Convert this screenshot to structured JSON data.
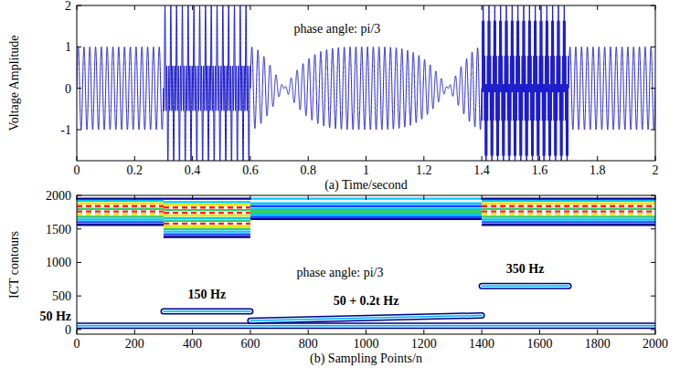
{
  "chart_data": [
    {
      "type": "line",
      "xlabel": "(a) Time/second",
      "ylabel": "Voltage Amplitude",
      "xlim": [
        0,
        2
      ],
      "ylim": [
        -1.75,
        2
      ],
      "xticks": [
        0,
        0.2,
        0.4,
        0.6,
        0.8,
        1,
        1.2,
        1.4,
        1.6,
        1.8,
        2
      ],
      "yticks": [
        -1,
        0,
        1,
        2
      ],
      "color": "#1a1acc",
      "segments": [
        {
          "x": [
            0,
            0.3
          ],
          "components": [
            {
              "frequency": 50,
              "amplitude": 1,
              "phase": 0
            }
          ]
        },
        {
          "x": [
            0.3,
            0.6
          ],
          "components": [
            {
              "frequency": 50,
              "amplitude": 1,
              "phase": 0
            },
            {
              "frequency": 150,
              "amplitude": 1,
              "phase": 180
            }
          ]
        },
        {
          "x": [
            0.6,
            1.4
          ],
          "components": [
            {
              "frequency": 50,
              "amplitude": 0.5,
              "phase": 0
            },
            {
              "frequency": [
                45,
                55
              ],
              "amplitude": 0.5,
              "phase": 0
            }
          ]
        },
        {
          "x": [
            1.4,
            1.7
          ],
          "components": [
            {
              "frequency": 50,
              "amplitude": 1,
              "phase": 0
            },
            {
              "frequency": 350,
              "amplitude": 1,
              "phase": 180
            }
          ]
        },
        {
          "x": [
            1.7,
            2
          ],
          "components": [
            {
              "frequency": 50,
              "amplitude": 1,
              "phase": 0
            }
          ]
        }
      ],
      "annotations": [
        {
          "text": "phase angle: pi/3",
          "x": 0.9,
          "y": 1.45
        }
      ]
    },
    {
      "type": "contour",
      "xlabel": "(b) Sampling Points/n",
      "ylabel": "ICT contours",
      "xlim": [
        0,
        2000
      ],
      "ylim": [
        -70,
        2000
      ],
      "xticks": [
        0,
        200,
        400,
        600,
        800,
        1000,
        1200,
        1400,
        1600,
        1800,
        2000
      ],
      "yticks": [
        0,
        500,
        1000,
        1500,
        2000
      ],
      "bands": [
        {
          "x": [
            0,
            300
          ],
          "lines": [
            {
              "y": 1560,
              "color": "#00008b"
            },
            {
              "y": 1600,
              "color": "#1e3cff"
            },
            {
              "y": 1640,
              "color": "#00c8ff"
            },
            {
              "y": 1680,
              "color": "#33cc66"
            },
            {
              "y": 1720,
              "color": "#e6e600",
              "line_style": "dashed"
            },
            {
              "y": 1760,
              "color": "#ff2020",
              "line_style": "dashed"
            },
            {
              "y": 1800,
              "color": "#33cc66"
            },
            {
              "y": 1840,
              "color": "#ff2020",
              "line_style": "dashed"
            },
            {
              "y": 1880,
              "color": "#e6e600"
            },
            {
              "y": 1920,
              "color": "#00c8ff"
            },
            {
              "y": 1950,
              "color": "#00008b"
            }
          ]
        },
        {
          "x": [
            300,
            600
          ],
          "lines": [
            {
              "y": 1380,
              "color": "#00008b"
            },
            {
              "y": 1420,
              "color": "#1e3cff"
            },
            {
              "y": 1460,
              "color": "#00c8ff"
            },
            {
              "y": 1500,
              "color": "#33cc66"
            },
            {
              "y": 1540,
              "color": "#e6e600"
            },
            {
              "y": 1580,
              "color": "#ff2020",
              "line_style": "dashed"
            },
            {
              "y": 1620,
              "color": "#33cc66"
            },
            {
              "y": 1660,
              "color": "#00c8ff"
            },
            {
              "y": 1700,
              "color": "#e6e600"
            },
            {
              "y": 1740,
              "color": "#ff2020",
              "line_style": "dashed"
            },
            {
              "y": 1780,
              "color": "#33cc66"
            },
            {
              "y": 1820,
              "color": "#ff2020",
              "line_style": "dashed"
            },
            {
              "y": 1860,
              "color": "#e6e600"
            },
            {
              "y": 1900,
              "color": "#00c8ff"
            },
            {
              "y": 1950,
              "color": "#00008b"
            }
          ]
        },
        {
          "x": [
            600,
            1400
          ],
          "lines": [
            {
              "y": 1650,
              "color": "#00008b"
            },
            {
              "y": 1680,
              "color": "#1e3cff"
            },
            {
              "y": 1710,
              "color": "#00c8ff"
            },
            {
              "y": 1740,
              "color": "#33cc66"
            },
            {
              "y": 1770,
              "color": "#33cc66"
            },
            {
              "y": 1800,
              "color": "#00c8ff"
            },
            {
              "y": 1840,
              "color": "#1e3cff"
            },
            {
              "y": 1880,
              "color": "#00c8ff"
            },
            {
              "y": 1950,
              "color": "#00c8ff"
            }
          ]
        },
        {
          "x": [
            1400,
            2000
          ],
          "lines": [
            {
              "y": 1560,
              "color": "#00008b"
            },
            {
              "y": 1600,
              "color": "#1e3cff"
            },
            {
              "y": 1640,
              "color": "#00c8ff"
            },
            {
              "y": 1680,
              "color": "#33cc66"
            },
            {
              "y": 1720,
              "color": "#e6e600",
              "line_style": "dashed"
            },
            {
              "y": 1760,
              "color": "#ff2020",
              "line_style": "dashed"
            },
            {
              "y": 1800,
              "color": "#33cc66"
            },
            {
              "y": 1840,
              "color": "#ff2020",
              "line_style": "dashed"
            },
            {
              "y": 1880,
              "color": "#e6e600"
            },
            {
              "y": 1920,
              "color": "#00c8ff"
            },
            {
              "y": 1950,
              "color": "#00008b"
            }
          ]
        }
      ],
      "ridges": [
        {
          "label": "50 Hz",
          "x": [
            0,
            2000
          ],
          "y": [
            55,
            55
          ]
        },
        {
          "label": "150 Hz",
          "x": [
            300,
            600
          ],
          "y": [
            270,
            270
          ]
        },
        {
          "label": "50 + 0.2t Hz",
          "x": [
            600,
            1400
          ],
          "y": [
            130,
            210
          ]
        },
        {
          "label": "350 Hz",
          "x": [
            1400,
            1700
          ],
          "y": [
            650,
            650
          ]
        }
      ],
      "annotations": [
        {
          "text": "phase angle: pi/3",
          "x": 910,
          "y": 860
        }
      ]
    }
  ]
}
